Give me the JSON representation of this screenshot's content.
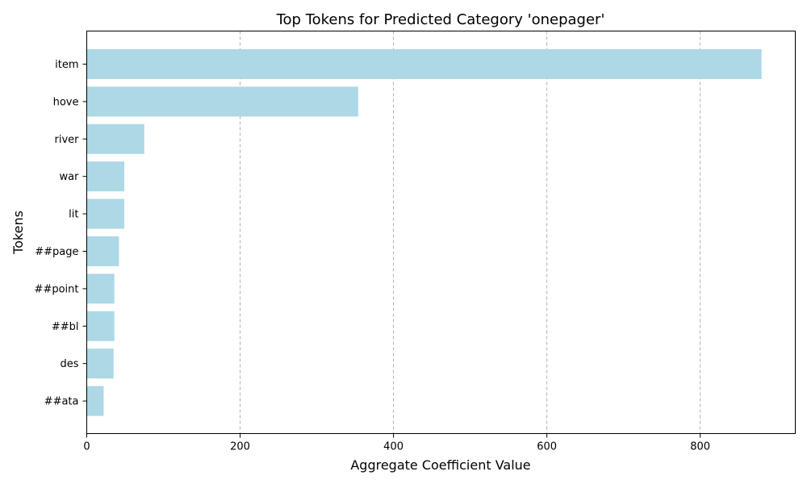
{
  "chart_data": {
    "type": "bar",
    "orientation": "horizontal",
    "title": "Top Tokens for Predicted Category 'onepager'",
    "xlabel": "Aggregate Coefficient Value",
    "ylabel": "Tokens",
    "categories": [
      "item",
      "hove",
      "river",
      "war",
      "lit",
      "##page",
      "##point",
      "##bl",
      "des",
      "##ata"
    ],
    "values": [
      880,
      354,
      75,
      49,
      49,
      42,
      36,
      36,
      35,
      22
    ],
    "xlim": [
      0,
      924
    ],
    "xticks": [
      0,
      200,
      400,
      600,
      800
    ],
    "grid": "x-dashed",
    "bar_color": "#add8e6"
  }
}
